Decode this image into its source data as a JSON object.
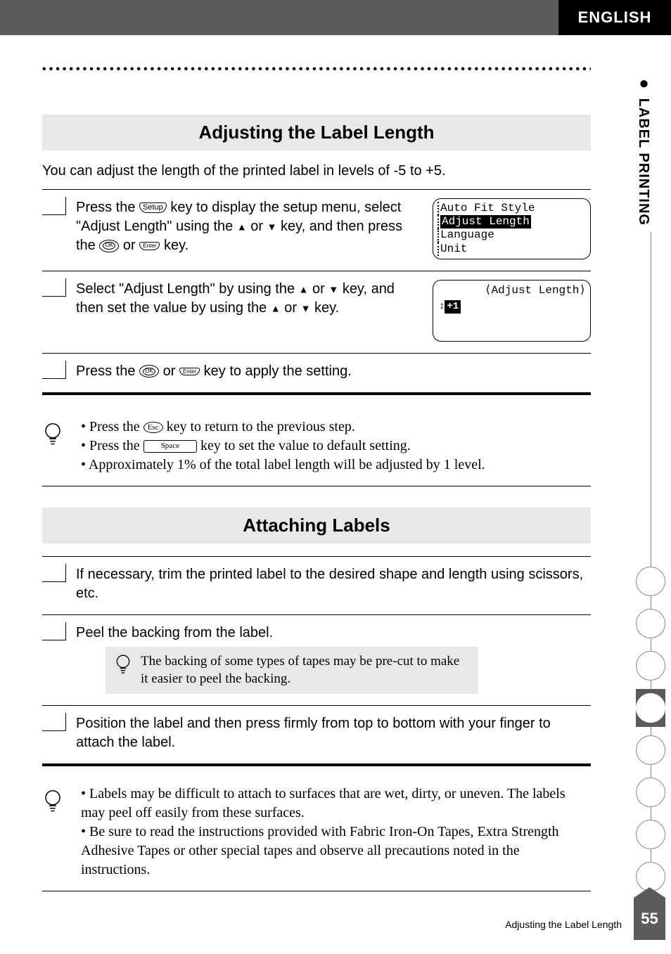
{
  "header": {
    "lang": "ENGLISH"
  },
  "side": {
    "label": "LABEL PRINTING"
  },
  "circles": {
    "count": 9,
    "active_index": 3
  },
  "page": {
    "number": "55",
    "footer_title": "Adjusting the Label Length"
  },
  "section1": {
    "title": "Adjusting the Label Length",
    "intro": "You can adjust the length of the printed label in levels of -5 to +5.",
    "step1_a": "Press the ",
    "step1_b": " key to display the setup menu, select \"Adjust Length\" using the ",
    "step1_c": " or ",
    "step1_d": " key, and then press the ",
    "step1_e": " or ",
    "step1_f": " key.",
    "step2_a": "Select \"Adjust Length\" by using the ",
    "step2_b": " or ",
    "step2_c": " key, and then set the value by using the ",
    "step2_d": " or ",
    "step2_e": " key.",
    "step3_a": "Press the ",
    "step3_b": " or ",
    "step3_c": " key to apply the setting.",
    "lcd": {
      "r1": "Auto Fit Style",
      "r2": "Adjust Length",
      "r3": "Language",
      "r4": "Unit"
    },
    "lcd2": {
      "title": "⟨Adjust Length⟩",
      "arrows": "↕",
      "value": "+1"
    },
    "tip1": "Press the ",
    "tip1b": " key to return to the previous step.",
    "tip2": "Press the ",
    "tip2b": " key to set the value to default setting.",
    "tip3": "Approximately 1% of the total label length will be adjusted by 1 level.",
    "key_space": "Space",
    "key_esc": "Esc",
    "key_ok": "OK",
    "key_setup": "Setup",
    "key_enter": "Enter"
  },
  "section2": {
    "title": "Attaching Labels",
    "step1": "If necessary, trim the printed label to the desired shape and length using scissors, etc.",
    "step2": "Peel the backing from the label.",
    "step2_tip": "The backing of some types of tapes may be pre-cut to make it easier to peel the backing.",
    "step3": "Position the label and then press firmly from top to bottom with your finger to attach the label.",
    "tip1": "Labels may be difficult to attach to surfaces that are wet, dirty, or uneven.  The labels may peel off easily from these surfaces.",
    "tip2": "Be sure to read the instructions provided with Fabric Iron-On Tapes, Extra Strength Adhesive Tapes or other special tapes and observe all precautions noted in the instructions."
  }
}
